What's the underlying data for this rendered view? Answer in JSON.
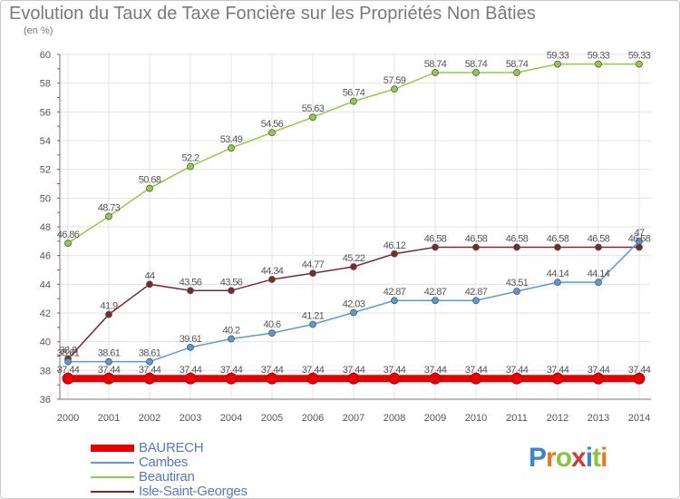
{
  "chart_data": {
    "type": "line",
    "title": "Evolution du Taux de Taxe Foncière sur les Propriétés Non Bâties",
    "subtitle": "(en %)",
    "x": [
      "2000",
      "2001",
      "2002",
      "2003",
      "2004",
      "2005",
      "2006",
      "2007",
      "2008",
      "2009",
      "2010",
      "2011",
      "2012",
      "2013",
      "2014"
    ],
    "ylim": [
      36,
      60
    ],
    "yticks": [
      36,
      38,
      40,
      42,
      44,
      46,
      48,
      50,
      52,
      54,
      56,
      58,
      60
    ],
    "grid": true,
    "legend_position": "bottom-left",
    "series": [
      {
        "name": "BAURECH",
        "color": "#e60000",
        "values": [
          37.44,
          37.44,
          37.44,
          37.44,
          37.44,
          37.44,
          37.44,
          37.44,
          37.44,
          37.44,
          37.44,
          37.44,
          37.44,
          37.44,
          37.44
        ],
        "labels": [
          "37.44",
          "37.44",
          "37.44",
          "37.44",
          "37.44",
          "37.44",
          "37.44",
          "37.44",
          "37.44",
          "37.44",
          "37.44",
          "37.44",
          "37.44",
          "37.44",
          "37.44"
        ]
      },
      {
        "name": "Cambes",
        "color": "#5b9bd5",
        "values": [
          38.61,
          38.61,
          38.61,
          39.61,
          40.2,
          40.6,
          41.21,
          42.03,
          42.87,
          42.87,
          42.87,
          43.51,
          44.14,
          44.14,
          47
        ],
        "labels": [
          "38.61",
          "38.61",
          "38.61",
          "39.61",
          "40.2",
          "40.6",
          "41.21",
          "42.03",
          "42.87",
          "42.87",
          "42.87",
          "43.51",
          "44.14",
          "44.14",
          "47"
        ]
      },
      {
        "name": "Beautiran",
        "color": "#8fce44",
        "values": [
          46.86,
          48.73,
          50.68,
          52.2,
          53.49,
          54.56,
          55.63,
          56.74,
          57.59,
          58.74,
          58.74,
          58.74,
          59.33,
          59.33,
          59.33
        ],
        "labels": [
          "46.86",
          "48.73",
          "50.68",
          "52.2",
          "53.49",
          "54.56",
          "55.63",
          "56.74",
          "57.59",
          "58.74",
          "58.74",
          "58.74",
          "59.33",
          "59.33",
          "59.33"
        ]
      },
      {
        "name": "Isle-Saint-Georges",
        "color": "#7b2a2a",
        "values": [
          38.8,
          41.9,
          44,
          43.56,
          43.56,
          44.34,
          44.77,
          45.22,
          46.12,
          46.58,
          46.58,
          46.58,
          46.58,
          46.58,
          46.58
        ],
        "labels": [
          "38.8",
          "41.9",
          "44",
          "43.56",
          "43.56",
          "44.34",
          "44.77",
          "45.22",
          "46.12",
          "46.58",
          "46.58",
          "46.58",
          "46.58",
          "46.58",
          "46.58"
        ]
      }
    ]
  },
  "logo": {
    "text": "Proxiti"
  }
}
